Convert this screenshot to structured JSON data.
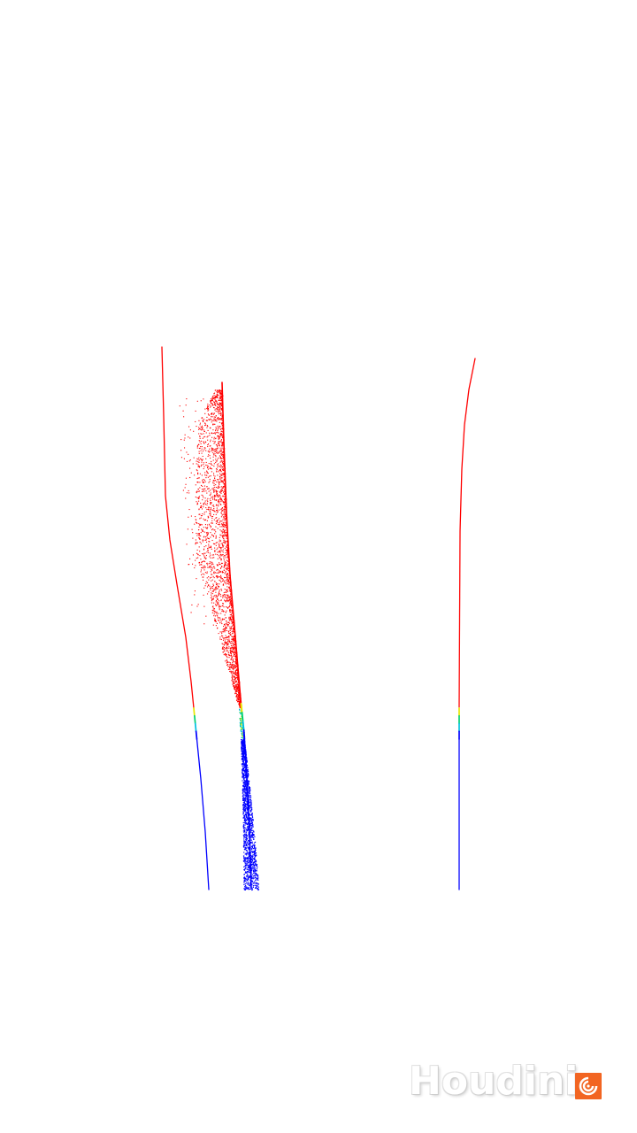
{
  "render": {
    "background": "#ffffff"
  },
  "colors": {
    "hot": "#ff0000",
    "transition_yellow": "#e6e600",
    "transition_green": "#00d070",
    "transition_cyan": "#00c0e0",
    "cold": "#0000ff",
    "logo_orange": "#f26522"
  },
  "watermark": {
    "text": "Houdini",
    "logo_icon": "houdini-swirl-icon"
  }
}
